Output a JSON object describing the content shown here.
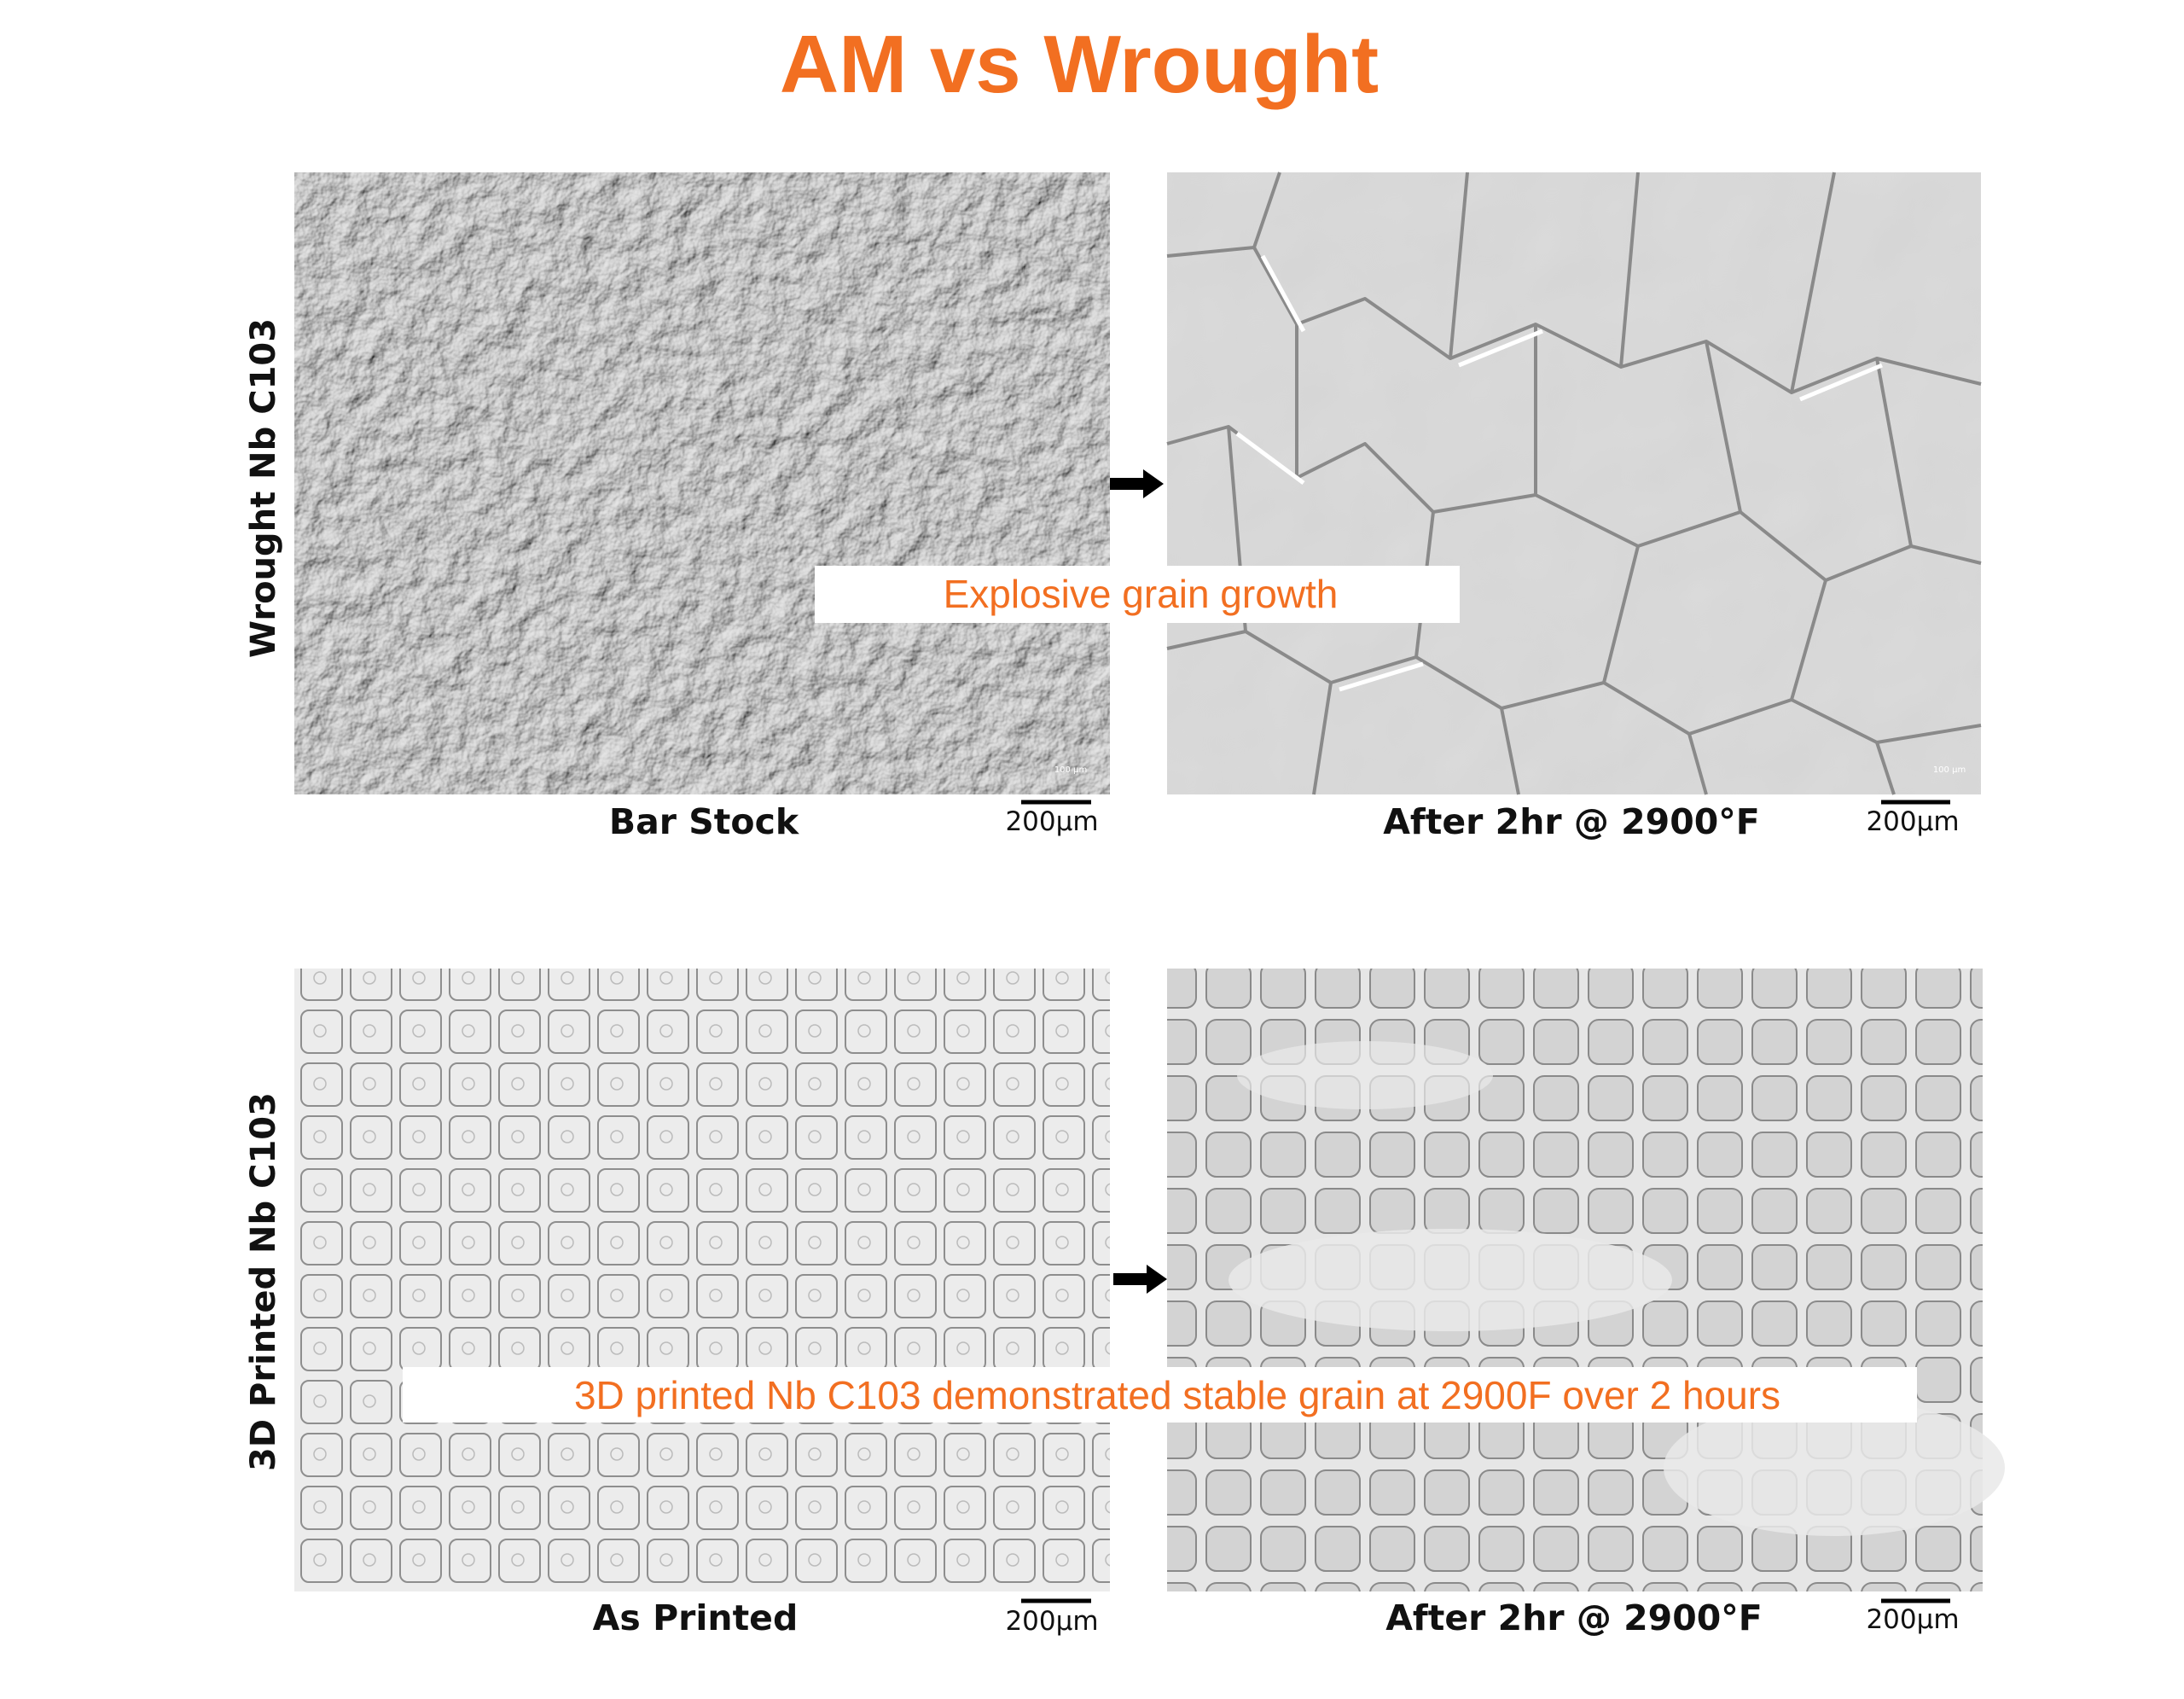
{
  "header": {
    "title": "AM vs Wrought"
  },
  "rows": [
    {
      "label": "Wrought Nb C103",
      "panels": [
        {
          "caption": "Bar Stock",
          "scale_bar": "200µm",
          "image_scale": "100 µm"
        },
        {
          "caption": "After 2hr @ 2900°F",
          "scale_bar": "200µm",
          "image_scale": "100 µm"
        }
      ],
      "callout": "Explosive grain growth"
    },
    {
      "label": "3D Printed Nb C103",
      "panels": [
        {
          "caption": "As Printed",
          "scale_bar": "200µm"
        },
        {
          "caption": "After 2hr @ 2900°F",
          "scale_bar": "200µm"
        }
      ],
      "callout": "3D printed Nb C103 demonstrated stable grain at 2900F over 2 hours"
    }
  ]
}
